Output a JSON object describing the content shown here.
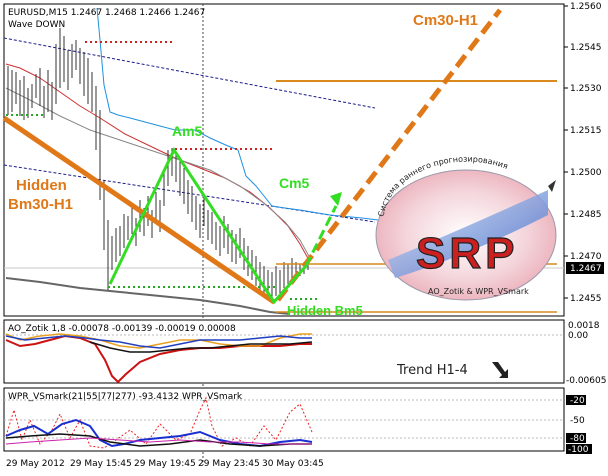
{
  "main_panel": {
    "header": "EURUSD,M15  1.2467 1.2468 1.2466 1.2467",
    "subheader": "Wave DOWN",
    "price_axis": [
      "1.2560",
      "1.2545",
      "1.2530",
      "1.2515",
      "1.2500",
      "1.2485",
      "1.2470",
      "1.2455"
    ],
    "current_price": "1.2467",
    "annotations": {
      "cm30": "Cm30-H1",
      "am5": "Am5",
      "cm5": "Cm5",
      "hidden_bm30_line1": "Hidden",
      "hidden_bm30_line2": "Bm30-H1",
      "hidden_bm5": "Hidden Bm5"
    },
    "logo": {
      "letters": "SRP",
      "arc_text": "Система раннего прогнозирования",
      "bottom_text": "AO_Zotik & WPR_VSmark"
    },
    "colors": {
      "wave_orange": "#e07818",
      "wave_green": "#33dd22",
      "level_orange": "#d88a1c",
      "dotted_red": "#cc2222",
      "dotted_green": "#22aa22",
      "ma_blue": "#1e90e0",
      "ma_red": "#cc3030",
      "ma_gray": "#666666",
      "channel_navy": "#1a1a8a"
    }
  },
  "ao_panel": {
    "header": "AO_Zotik 1,8 -0.00078 -0.00139 -0.00019 0.00008",
    "axis": [
      "0.0018",
      "0.00",
      "-0.00605"
    ],
    "trend_text": "Trend H1-4"
  },
  "wpr_panel": {
    "header": "WPR_VSmark(21|55|77|277) -93.4132  WPR_VSmark",
    "axis": [
      "-20",
      "-50",
      "-80",
      "-100"
    ]
  },
  "time_axis": [
    "29 May 2012",
    "29 May 15:45",
    "29 May 19:45",
    "29 May 23:45",
    "30 May 03:45"
  ]
}
